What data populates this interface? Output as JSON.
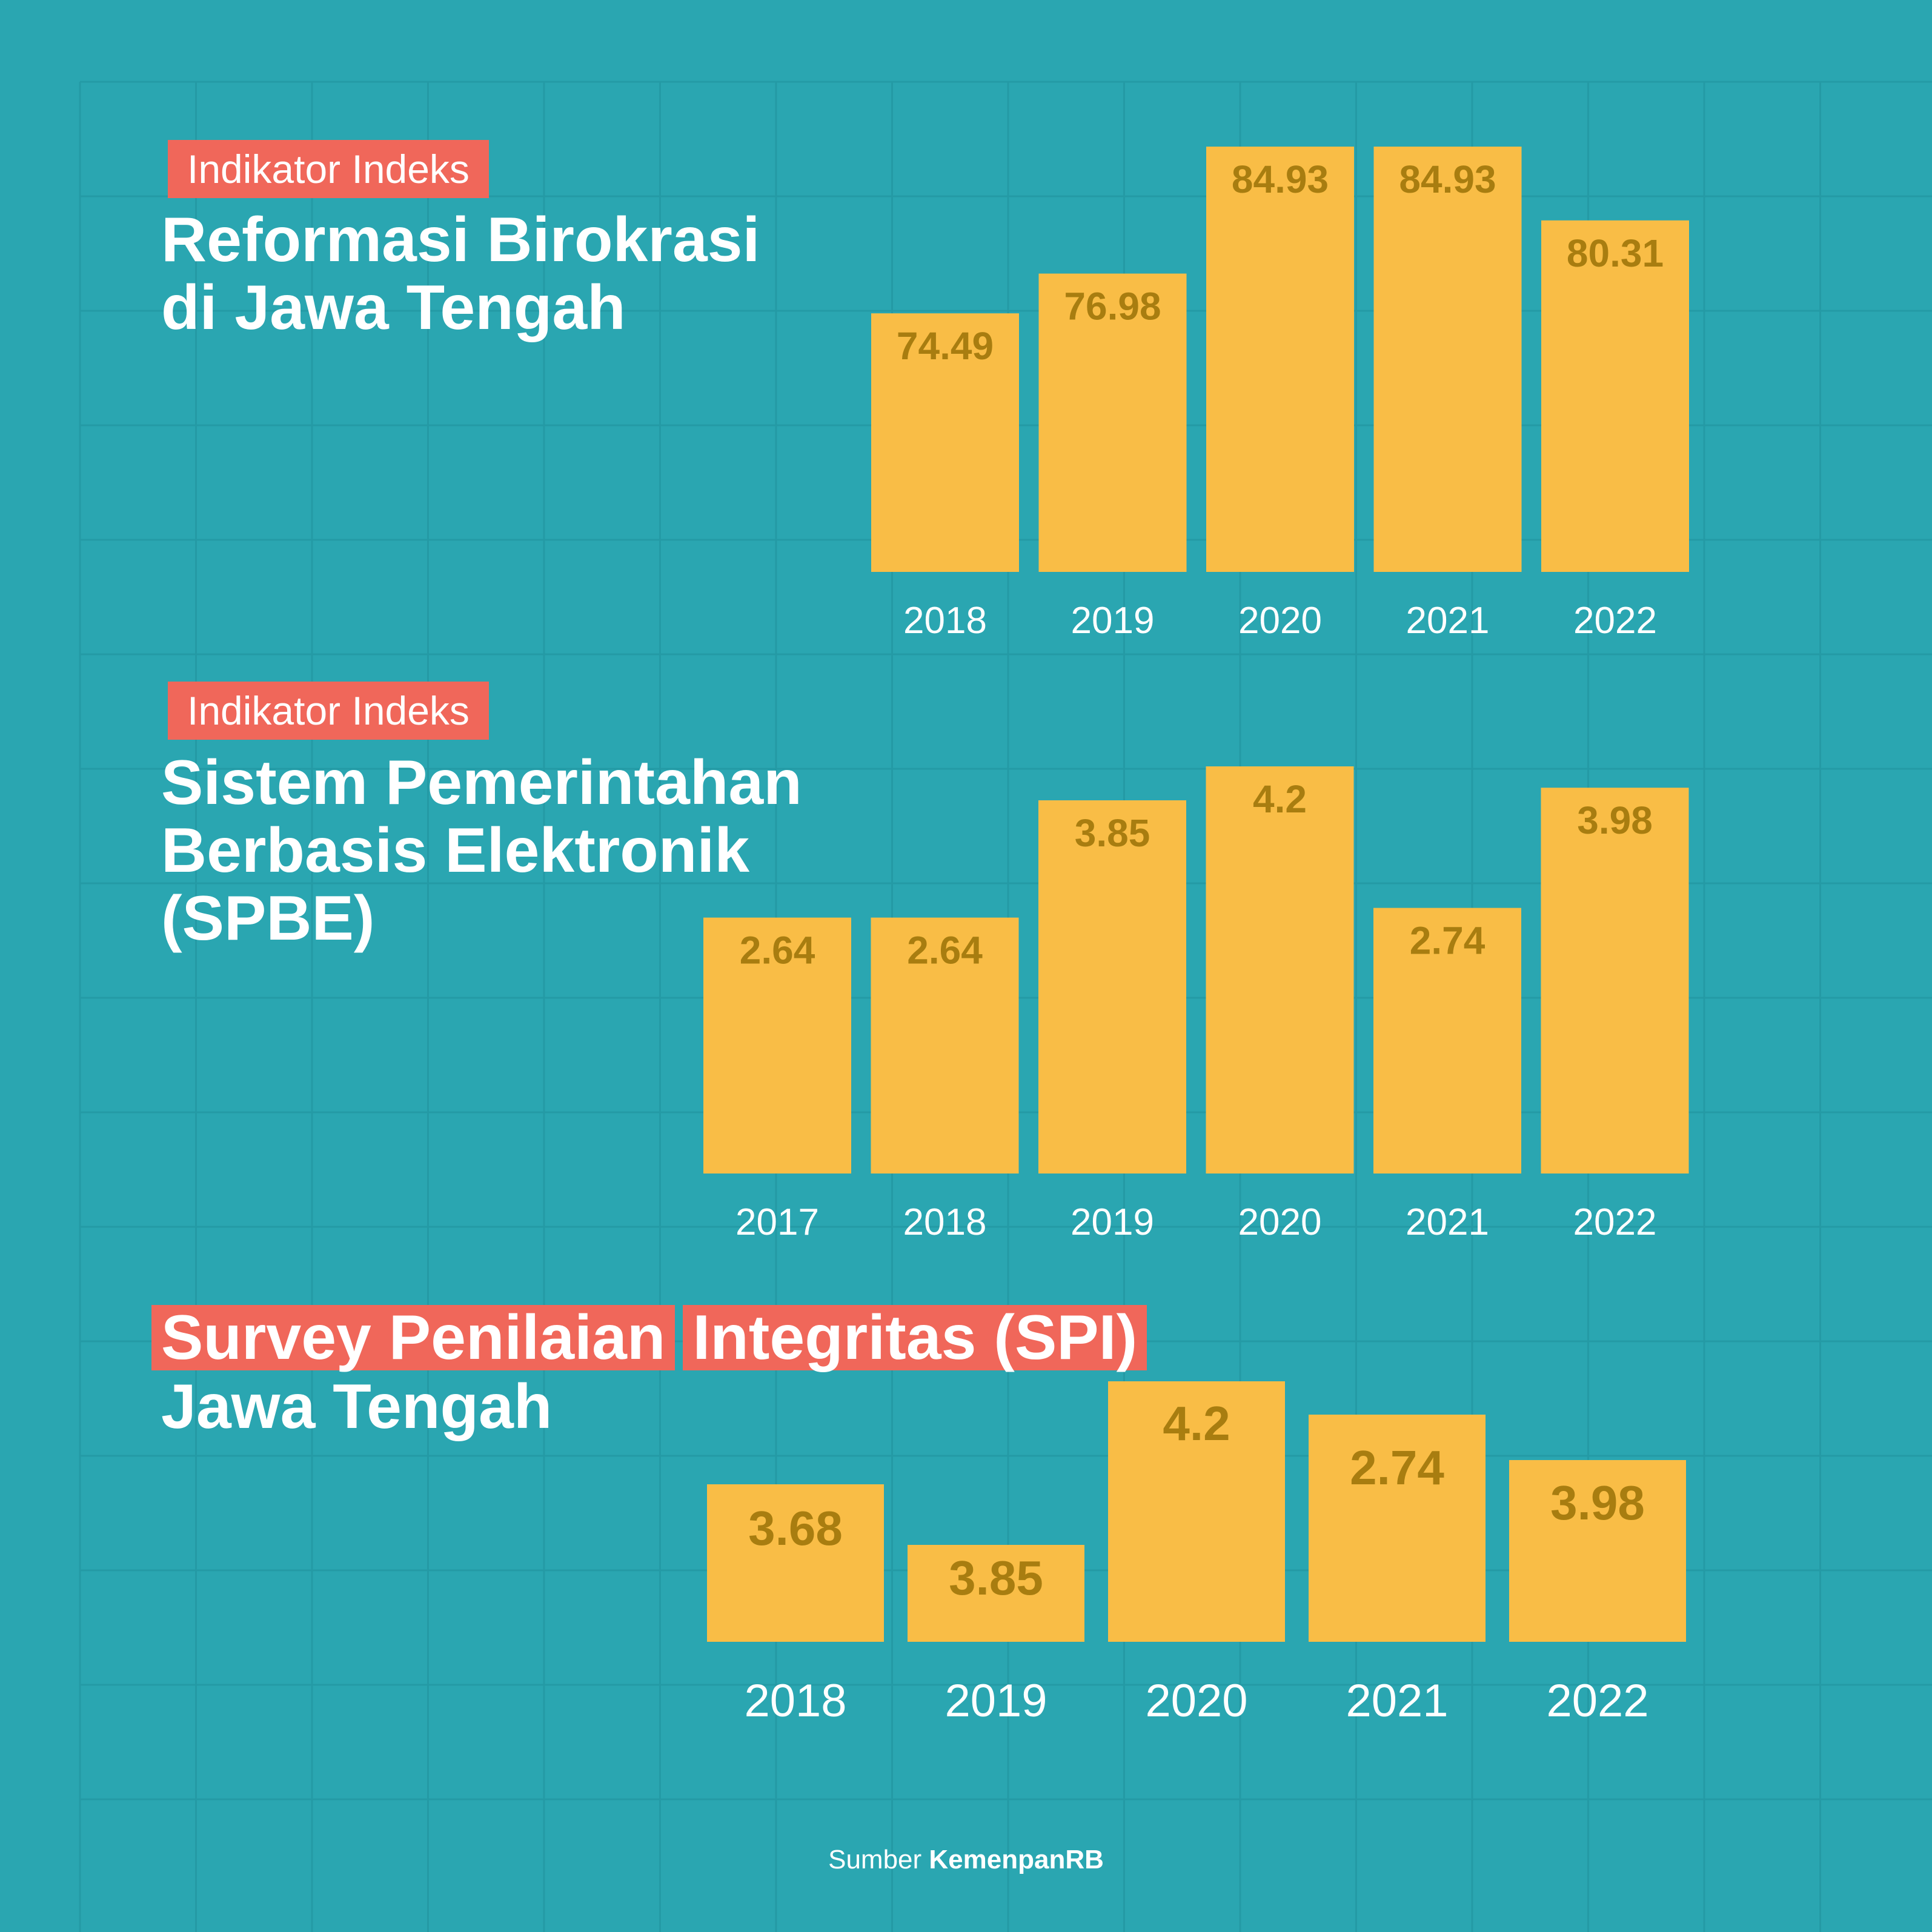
{
  "colors": {
    "background": "#2aa6b1",
    "bar": "#f9bd46",
    "bar_label": "#a87d10",
    "tag": "#f0675a",
    "text": "#ffffff"
  },
  "charts": {
    "rb": {
      "tag": "Indikator Indeks",
      "title_lines": [
        "Reformasi Birokrasi",
        "di Jawa Tengah"
      ]
    },
    "spbe": {
      "tag": "Indikator Indeks",
      "title_lines": [
        "Sistem Pemerintahan",
        "Berbasis Elektronik",
        "(SPBE)"
      ]
    },
    "spi": {
      "title_lines": [
        "Survey Penilaian",
        "Integritas (SPI)",
        "Jawa Tengah"
      ]
    }
  },
  "chart_data": [
    {
      "type": "bar",
      "title": "Indikator Indeks Reformasi Birokrasi di Jawa Tengah",
      "categories": [
        "2018",
        "2019",
        "2020",
        "2021",
        "2022"
      ],
      "values": [
        74.49,
        76.98,
        84.93,
        84.93,
        80.31
      ],
      "labels": [
        "74.49",
        "76.98",
        "84.93",
        "84.93",
        "80.31"
      ],
      "ylim": [
        58.3,
        84.93
      ],
      "grid": false
    },
    {
      "type": "bar",
      "title": "Indikator Indeks Sistem Pemerintahan Berbasis Elektronik (SPBE)",
      "categories": [
        "2017",
        "2018",
        "2019",
        "2020",
        "2021",
        "2022"
      ],
      "values": [
        2.64,
        2.64,
        3.85,
        4.2,
        2.74,
        3.98
      ],
      "labels": [
        "2.64",
        "2.64",
        "3.85",
        "4.2",
        "2.74",
        "3.98"
      ],
      "ylim": [
        0,
        4.2
      ],
      "grid": false
    },
    {
      "type": "bar",
      "title": "Survey Penilaian Integritas (SPI) Jawa Tengah",
      "categories": [
        "2018",
        "2019",
        "2020",
        "2021",
        "2022"
      ],
      "values": [
        3.68,
        3.85,
        4.2,
        2.74,
        3.98
      ],
      "labels": [
        "3.68",
        "3.85",
        "4.2",
        "2.74",
        "3.98"
      ],
      "grid": false
    }
  ],
  "footer": {
    "prefix": "Sumber",
    "source": "KemenpanRB"
  }
}
